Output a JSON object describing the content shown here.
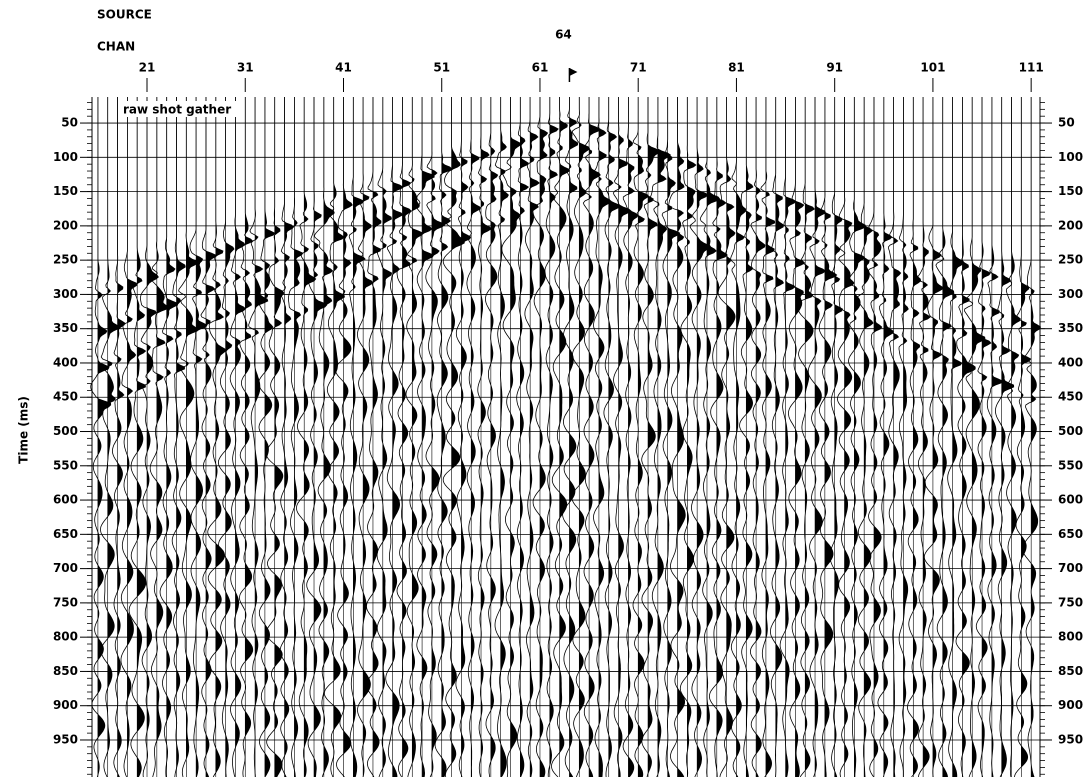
{
  "chart_data": {
    "type": "wiggle",
    "title": "raw shot gather",
    "header_labels": [
      "SOURCE",
      "CHAN"
    ],
    "source_channel": 64,
    "ylabel": "Time (ms)",
    "xlim": [
      15.4,
      111.9
    ],
    "xticks": [
      21,
      31,
      41,
      51,
      61,
      71,
      81,
      91,
      101,
      111
    ],
    "ylim": [
      12,
      1004
    ],
    "y_inverted": true,
    "yticks": [
      50,
      100,
      150,
      200,
      250,
      300,
      350,
      400,
      450,
      500,
      550,
      600,
      650,
      700,
      750,
      800,
      850,
      900,
      950
    ],
    "y_ticks_both_sides": true,
    "grid": true,
    "color": "#000000"
  }
}
